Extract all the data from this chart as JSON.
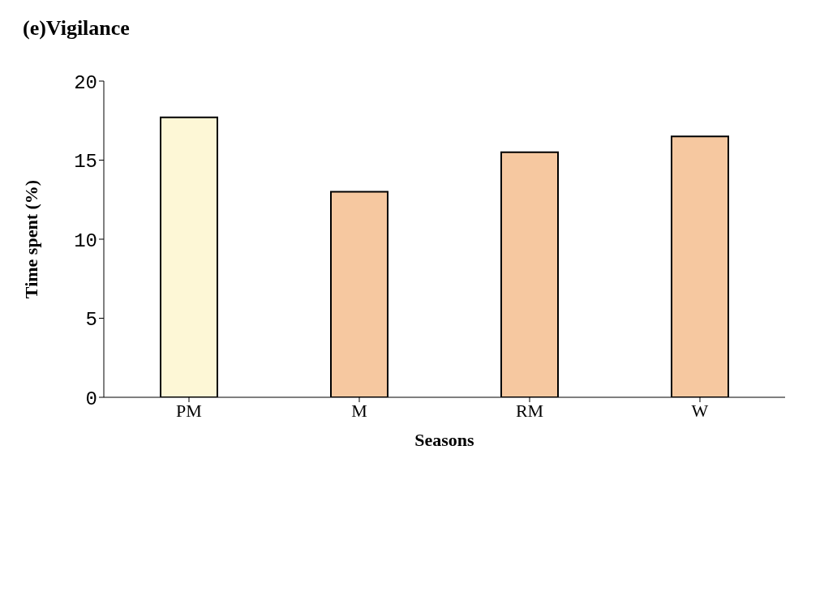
{
  "chart_data": {
    "type": "bar",
    "title": "(e)Vigilance",
    "xlabel": "Seasons",
    "ylabel": "Time spent (%)",
    "categories": [
      "PM",
      "M",
      "RM",
      "W"
    ],
    "values": [
      17.7,
      13,
      15.5,
      16.5
    ],
    "colors": [
      "#fdf7d6",
      "#f6c8a0",
      "#f6c8a0",
      "#f6c8a0"
    ],
    "ylim": [
      0,
      20
    ],
    "yticks": [
      0,
      5,
      10,
      15,
      20
    ],
    "grid": false,
    "legend": false
  }
}
